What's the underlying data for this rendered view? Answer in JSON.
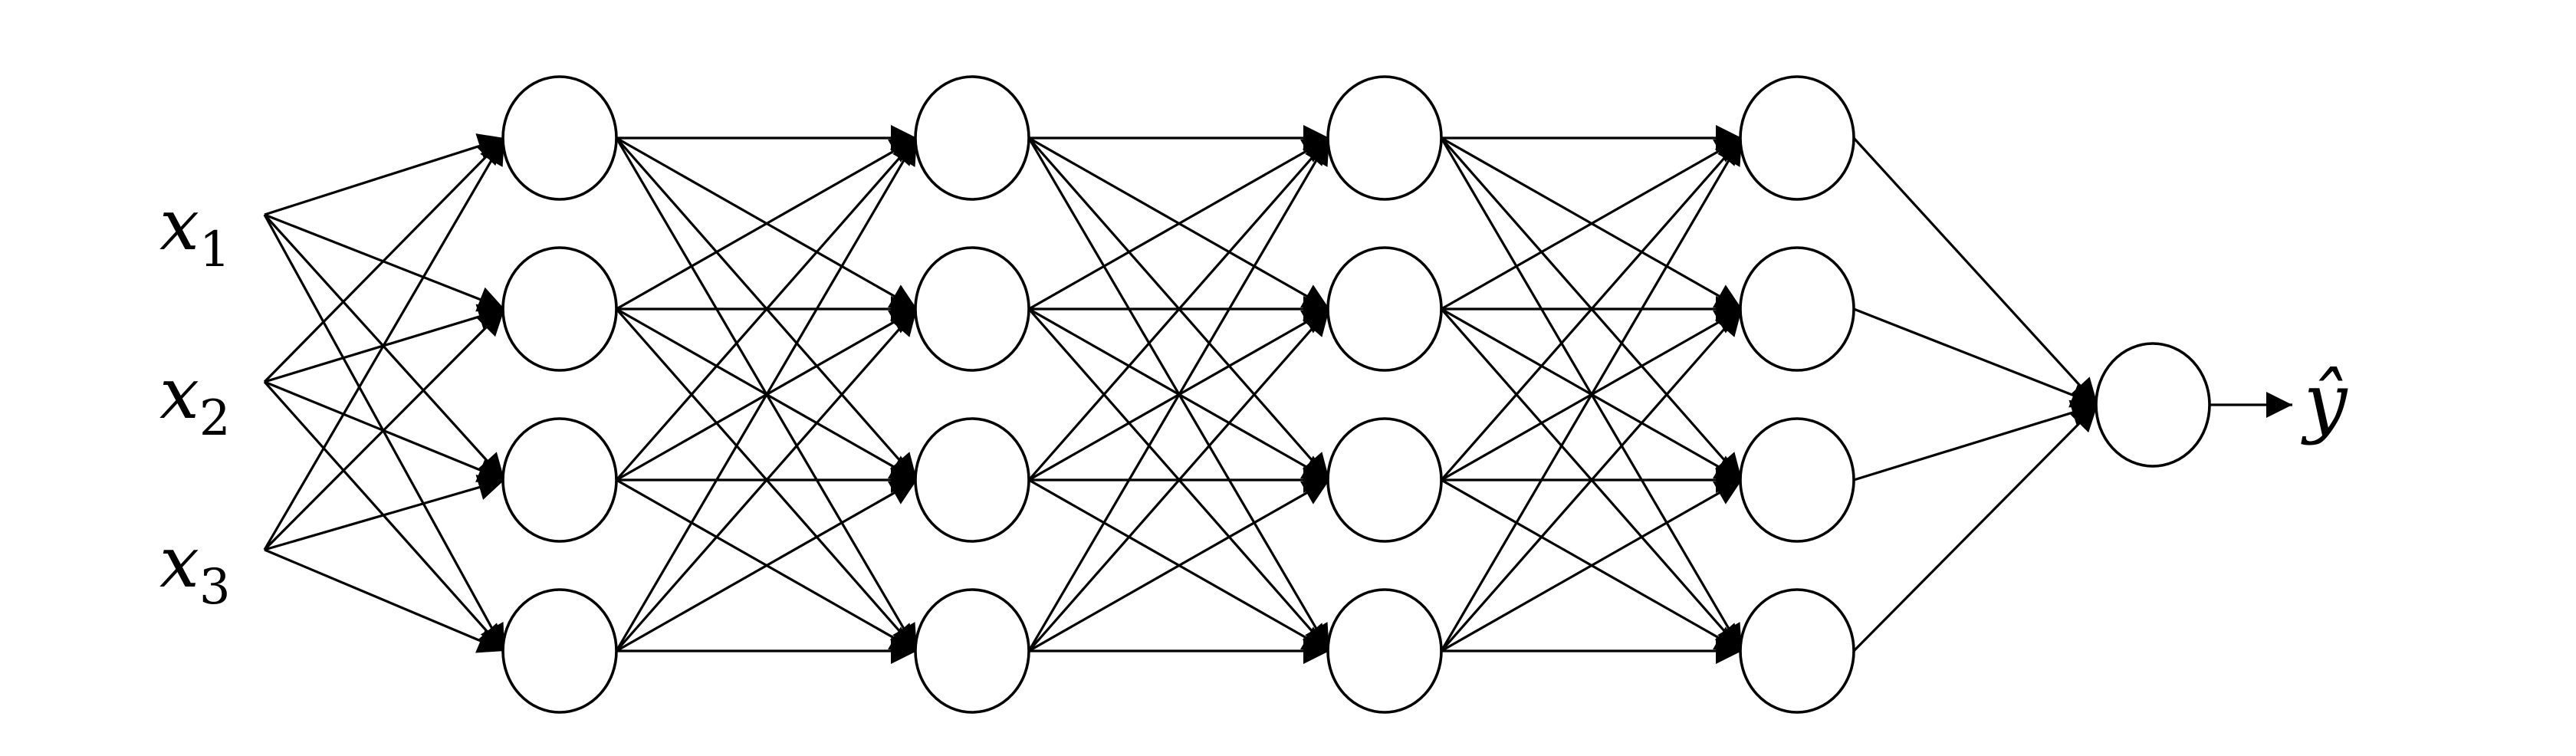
{
  "diagram": {
    "type": "feed-forward neural network",
    "inputs": [
      {
        "symbol": "x",
        "subscript": "1"
      },
      {
        "symbol": "x",
        "subscript": "2"
      },
      {
        "symbol": "x",
        "subscript": "3"
      }
    ],
    "hidden_layers": [
      4,
      4,
      4,
      4
    ],
    "output_nodes": 1,
    "output_label": "ŷ",
    "connections": "fully connected",
    "colors": {
      "line": "#000000",
      "node_fill": "#ffffff",
      "background": "#ffffff"
    }
  }
}
